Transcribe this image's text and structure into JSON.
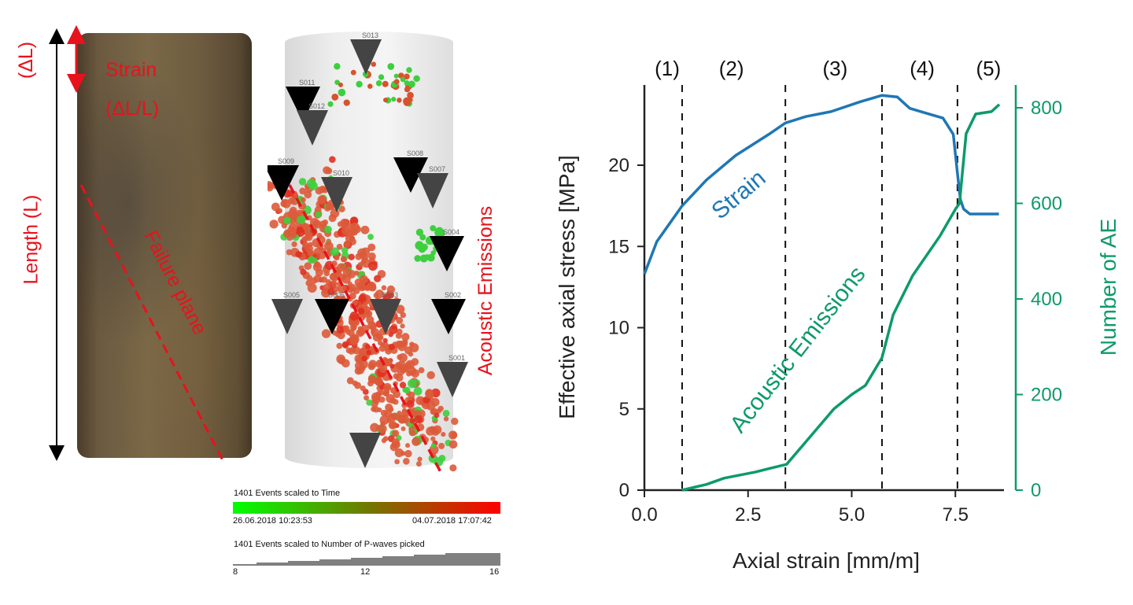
{
  "core_photo": {
    "labels": {
      "delta_l": "(ΔL)",
      "strain_line1": "Strain",
      "strain_line2": "(ΔL/L)",
      "length": "Length (L)",
      "failure_plane": "Failure plane"
    }
  },
  "ae_view": {
    "side_label": "Acoustic Emissions",
    "sensors": [
      "S013",
      "S011",
      "S012",
      "S009",
      "S010",
      "S008",
      "S007",
      "S004",
      "S005",
      "S006",
      "S003",
      "S002",
      "S001"
    ],
    "legend_time": {
      "title": "1401 Events scaled to Time",
      "start": "26.06.2018 10:23:53",
      "end": "04.07.2018 17:07:42",
      "color_start": "#00ff00",
      "color_end": "#ff0000"
    },
    "legend_pwaves": {
      "title": "1401 Events scaled to Number of P-waves picked",
      "ticks": [
        "8",
        "12",
        "16"
      ]
    }
  },
  "chart_data": {
    "type": "line",
    "xlabel": "Axial strain [mm/m]",
    "ylabel": "Effective axial stress [MPa]",
    "y2label": "Number of AE",
    "xlim": [
      0,
      8.6
    ],
    "ylim": [
      0,
      25
    ],
    "y2lim": [
      0,
      823
    ],
    "xticks": [
      "0.0",
      "2.5",
      "5.0",
      "7.5"
    ],
    "yticks": [
      "0",
      "5",
      "10",
      "15",
      "20"
    ],
    "y2ticks": [
      "0",
      "200",
      "400",
      "600",
      "800"
    ],
    "grid": false,
    "stage_labels": [
      "(1)",
      "(2)",
      "(3)",
      "(4)",
      "(5)"
    ],
    "stage_boundaries": [
      0.91,
      3.4,
      5.73,
      7.55
    ],
    "colors": {
      "stress": "#1f77b4",
      "ae": "#0e9a6a",
      "axis_left": "#222222",
      "axis_right": "#0e9a6a"
    },
    "series": [
      {
        "name": "Strain",
        "axis": "left",
        "x": [
          0.0,
          0.3,
          0.91,
          1.5,
          2.2,
          3.0,
          3.4,
          3.9,
          4.5,
          5.2,
          5.73,
          6.1,
          6.4,
          6.8,
          7.2,
          7.45,
          7.55,
          7.62,
          7.7,
          7.85,
          8.1,
          8.55
        ],
        "y": [
          13.3,
          15.3,
          17.5,
          19.1,
          20.6,
          21.9,
          22.6,
          23.0,
          23.3,
          23.9,
          24.3,
          24.2,
          23.5,
          23.2,
          22.9,
          21.9,
          19.5,
          17.9,
          17.3,
          17.0,
          17.0,
          17.0
        ]
      },
      {
        "name": "Acoustic Emissions",
        "axis": "right",
        "x": [
          0.91,
          1.5,
          1.92,
          2.68,
          3.0,
          3.43,
          4.0,
          4.57,
          5.0,
          5.33,
          5.73,
          6.0,
          6.47,
          7.13,
          7.51,
          7.6,
          7.65,
          7.76,
          7.99,
          8.37,
          8.56
        ],
        "y": [
          0,
          12,
          25,
          38,
          45,
          54,
          112,
          170,
          200,
          219,
          277,
          367,
          449,
          532,
          589,
          600,
          647,
          746,
          787,
          792,
          807
        ]
      }
    ]
  }
}
